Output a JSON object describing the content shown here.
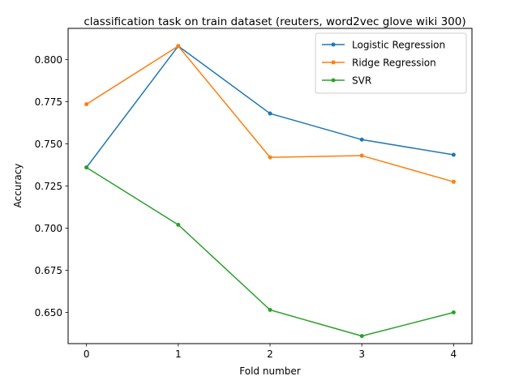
{
  "chart_data": {
    "type": "line",
    "title": "classification task on train dataset (reuters, word2vec glove wiki 300)",
    "xlabel": "Fold number",
    "ylabel": "Accuracy",
    "x": [
      0,
      1,
      2,
      3,
      4
    ],
    "xticks": [
      "0",
      "1",
      "2",
      "3",
      "4"
    ],
    "yticks": [
      "0.650",
      "0.675",
      "0.700",
      "0.725",
      "0.750",
      "0.775",
      "0.800"
    ],
    "ylim": [
      0.6315,
      0.8185
    ],
    "xlim": [
      -0.2,
      4.2
    ],
    "grid": false,
    "legend_position": "top-right",
    "series": [
      {
        "name": "Logistic Regression",
        "color": "#1f77b4",
        "values": [
          0.736,
          0.808,
          0.768,
          0.7525,
          0.7435
        ]
      },
      {
        "name": "Ridge Regression",
        "color": "#ff7f0e",
        "values": [
          0.7735,
          0.808,
          0.742,
          0.743,
          0.7275
        ]
      },
      {
        "name": "SVR",
        "color": "#2ca02c",
        "values": [
          0.736,
          0.702,
          0.6515,
          0.636,
          0.65
        ]
      }
    ]
  }
}
